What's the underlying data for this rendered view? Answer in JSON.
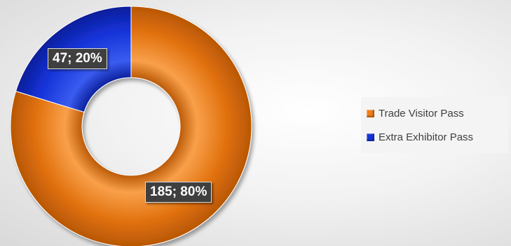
{
  "chart_data": {
    "type": "pie",
    "variant": "doughnut",
    "categories": [
      "Trade Visitor Pass",
      "Extra Exhibitor Pass"
    ],
    "values": [
      185,
      47
    ],
    "percentages": [
      80,
      20
    ],
    "data_labels": [
      "185; 80%",
      "47; 20%"
    ],
    "colors": [
      "#F07F17",
      "#1533D8"
    ],
    "title": "",
    "legend_position": "right"
  },
  "legend": {
    "items": [
      {
        "label": "Trade Visitor Pass",
        "color": "#F07F17"
      },
      {
        "label": "Extra Exhibitor Pass",
        "color": "#1533D8"
      }
    ]
  }
}
